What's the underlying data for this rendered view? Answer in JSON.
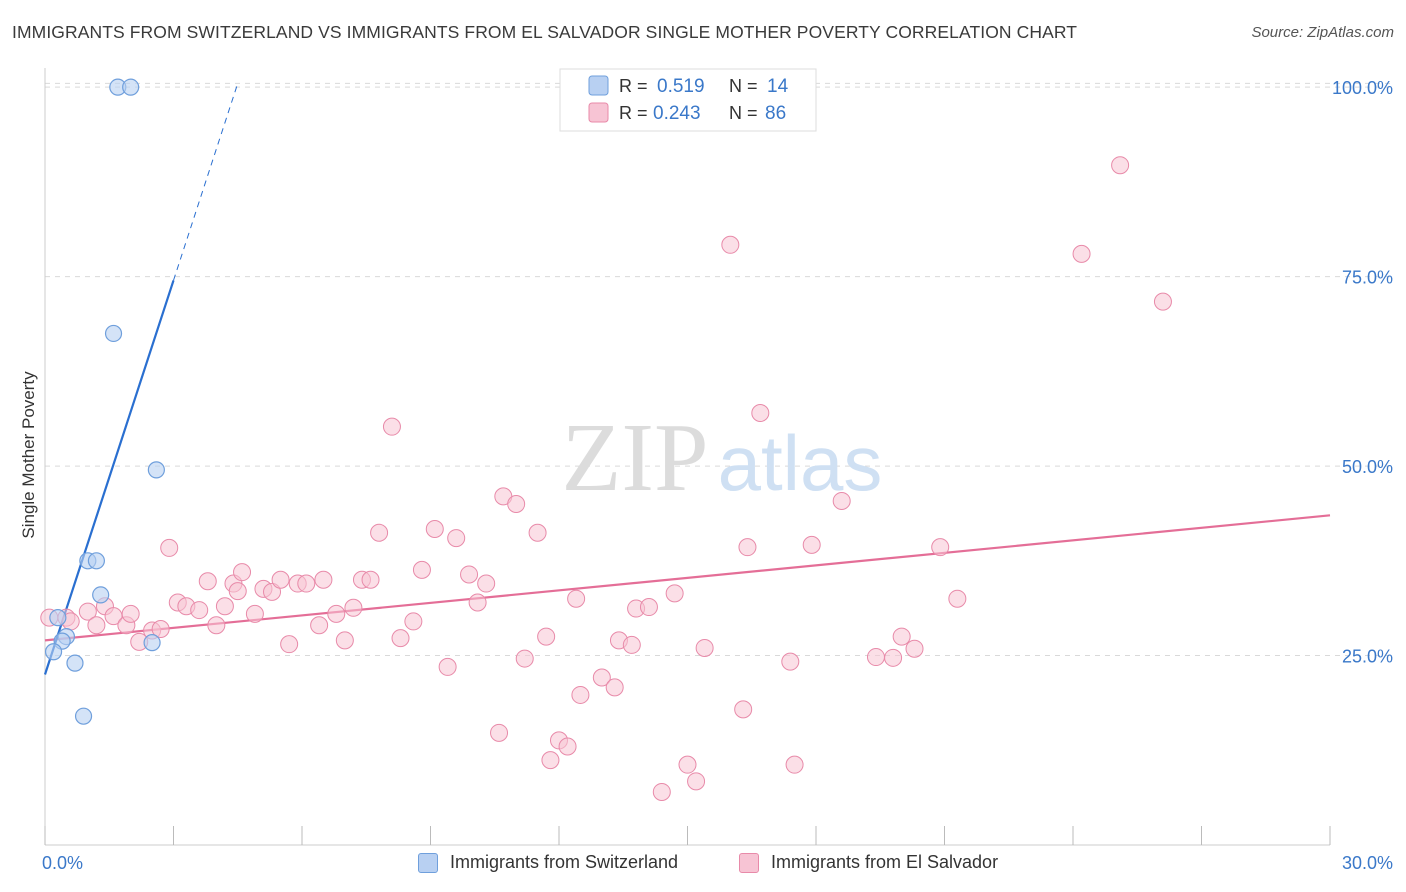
{
  "title": "IMMIGRANTS FROM SWITZERLAND VS IMMIGRANTS FROM EL SALVADOR SINGLE MOTHER POVERTY CORRELATION CHART",
  "source": "Source: ZipAtlas.com",
  "watermark": {
    "zip": "ZIP",
    "atlas": "atlas"
  },
  "colors": {
    "blue_fill": "#b8d0f2",
    "blue_stroke": "#6f9fdc",
    "blue_line": "#2a6fd0",
    "pink_fill": "#f7c4d4",
    "pink_stroke": "#e88aa9",
    "pink_line": "#e46e97",
    "value_text": "#3a78c9",
    "grid": "#d9d9d9"
  },
  "legend_stats": [
    {
      "r_label": "R =",
      "r_value": "0.519",
      "n_label": "N =",
      "n_value": "14",
      "series": "blue"
    },
    {
      "r_label": "R =",
      "r_value": "0.243",
      "n_label": "N =",
      "n_value": "86",
      "series": "pink"
    }
  ],
  "chart_data": {
    "type": "scatter",
    "title": "IMMIGRANTS FROM SWITZERLAND VS IMMIGRANTS FROM EL SALVADOR SINGLE MOTHER POVERTY CORRELATION CHART",
    "xlabel": "",
    "ylabel": "Single Mother Poverty",
    "xlim": [
      0,
      30
    ],
    "ylim": [
      0,
      102
    ],
    "x_tick_labels": [
      "0.0%",
      "30.0%"
    ],
    "y_ticks": [
      25,
      50,
      75,
      100
    ],
    "y_tick_labels": [
      "25.0%",
      "50.0%",
      "75.0%",
      "100.0%"
    ],
    "grid": "horizontal dashed",
    "legend_placement": "top-center",
    "series": [
      {
        "name": "Immigrants from Switzerland",
        "color": "blue",
        "points": [
          [
            1.7,
            100
          ],
          [
            2.0,
            100
          ],
          [
            1.6,
            67.5
          ],
          [
            2.6,
            49.5
          ],
          [
            1.0,
            37.5
          ],
          [
            1.2,
            37.5
          ],
          [
            1.3,
            33
          ],
          [
            0.3,
            30
          ],
          [
            0.5,
            27.5
          ],
          [
            0.4,
            26.9
          ],
          [
            2.5,
            26.7
          ],
          [
            0.2,
            25.5
          ],
          [
            0.7,
            24
          ],
          [
            0.9,
            17
          ]
        ],
        "trend": {
          "x0": 0.0,
          "y0": 22.5,
          "x1": 3.0,
          "y1": 74.5,
          "dash_to_x": 4.5,
          "dash_to_y": 100.5
        }
      },
      {
        "name": "Immigrants from El Salvador",
        "color": "pink",
        "points": [
          [
            0.1,
            30
          ],
          [
            0.5,
            30
          ],
          [
            0.6,
            29.5
          ],
          [
            1.0,
            30.8
          ],
          [
            1.2,
            29
          ],
          [
            1.4,
            31.5
          ],
          [
            1.6,
            30.2
          ],
          [
            1.9,
            29
          ],
          [
            2.0,
            30.5
          ],
          [
            2.2,
            26.8
          ],
          [
            2.5,
            28.3
          ],
          [
            2.7,
            28.5
          ],
          [
            2.9,
            39.2
          ],
          [
            3.1,
            32
          ],
          [
            3.3,
            31.5
          ],
          [
            3.6,
            31
          ],
          [
            3.8,
            34.8
          ],
          [
            4.0,
            29
          ],
          [
            4.2,
            31.5
          ],
          [
            4.4,
            34.5
          ],
          [
            4.6,
            36
          ],
          [
            4.5,
            33.5
          ],
          [
            4.9,
            30.5
          ],
          [
            5.1,
            33.8
          ],
          [
            5.3,
            33.4
          ],
          [
            5.5,
            35
          ],
          [
            5.7,
            26.5
          ],
          [
            5.9,
            34.5
          ],
          [
            6.1,
            34.5
          ],
          [
            6.4,
            29
          ],
          [
            6.5,
            35
          ],
          [
            6.8,
            30.5
          ],
          [
            7.0,
            27
          ],
          [
            7.2,
            31.3
          ],
          [
            7.4,
            35
          ],
          [
            7.6,
            35
          ],
          [
            7.8,
            41.2
          ],
          [
            8.1,
            55.2
          ],
          [
            8.3,
            27.3
          ],
          [
            8.6,
            29.5
          ],
          [
            8.8,
            36.3
          ],
          [
            9.1,
            41.7
          ],
          [
            9.4,
            23.5
          ],
          [
            9.6,
            40.5
          ],
          [
            9.9,
            35.7
          ],
          [
            10.1,
            32
          ],
          [
            10.3,
            34.5
          ],
          [
            10.6,
            14.8
          ],
          [
            10.7,
            46
          ],
          [
            11.0,
            45
          ],
          [
            11.2,
            24.6
          ],
          [
            11.5,
            41.2
          ],
          [
            11.7,
            27.5
          ],
          [
            11.8,
            11.2
          ],
          [
            12.0,
            13.8
          ],
          [
            12.2,
            13
          ],
          [
            12.4,
            32.5
          ],
          [
            12.5,
            19.8
          ],
          [
            13.0,
            22.1
          ],
          [
            13.3,
            20.8
          ],
          [
            13.4,
            27
          ],
          [
            13.7,
            26.4
          ],
          [
            13.8,
            31.2
          ],
          [
            14.1,
            31.4
          ],
          [
            14.4,
            7
          ],
          [
            14.7,
            33.2
          ],
          [
            15.0,
            10.6
          ],
          [
            15.2,
            8.4
          ],
          [
            15.4,
            26
          ],
          [
            16.0,
            79.2
          ],
          [
            16.3,
            17.9
          ],
          [
            16.4,
            39.3
          ],
          [
            16.7,
            57
          ],
          [
            17.4,
            24.2
          ],
          [
            17.5,
            10.6
          ],
          [
            17.9,
            39.6
          ],
          [
            18.6,
            45.4
          ],
          [
            19.4,
            24.8
          ],
          [
            19.8,
            24.7
          ],
          [
            20.0,
            27.5
          ],
          [
            20.3,
            25.9
          ],
          [
            20.9,
            39.3
          ],
          [
            21.3,
            32.5
          ],
          [
            24.2,
            78
          ],
          [
            25.1,
            89.7
          ],
          [
            26.1,
            71.7
          ]
        ],
        "trend": {
          "x0": 0.0,
          "y0": 27.0,
          "x1": 30.0,
          "y1": 43.5
        }
      }
    ]
  }
}
